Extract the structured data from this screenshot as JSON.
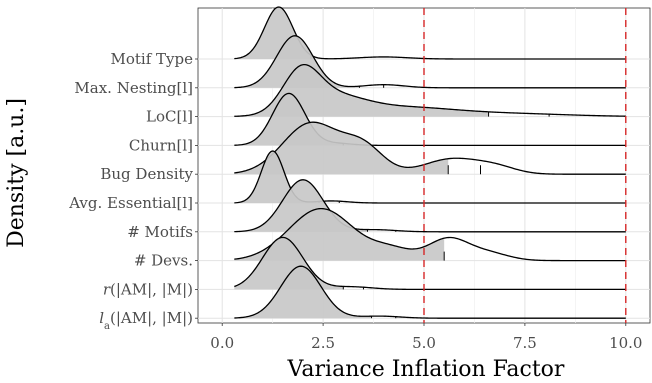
{
  "chart_data": {
    "type": "ridgeline",
    "xlabel": "Variance Inflation Factor",
    "ylabel": "Density [a.u.]",
    "xlim": [
      -0.6,
      10.6
    ],
    "x_ticks": [
      0,
      2.5,
      5,
      7.5,
      10
    ],
    "x_tick_labels": [
      "0.0",
      "2.5",
      "5.0",
      "7.5",
      "10.0"
    ],
    "grid": true,
    "reference_lines": [
      5,
      10
    ],
    "reference_line_color": "#d62728",
    "fill_color": "#c8c8c8",
    "categories": [
      "Motif Type",
      "Max. Nesting[l]",
      "LoC[l]",
      "Churn[l]",
      "Bug Density",
      "Avg. Essential[l]",
      "# Motifs",
      "# Devs.",
      "r(|AM|,|M|)",
      "l_a(|AM|,|M|)"
    ],
    "series": [
      {
        "label": "Motif Type",
        "label_parts": [
          {
            "t": "Motif Type"
          }
        ],
        "x_range": [
          0.3,
          10.0
        ],
        "fill_upper": 2.2,
        "quantile_marks": [
          2.2,
          2.6
        ],
        "components": [
          [
            1.4,
            0.35,
            1.0
          ],
          [
            4.0,
            0.6,
            0.04
          ]
        ]
      },
      {
        "label": "Max. Nesting[l]",
        "label_parts": [
          {
            "t": "Max. Nesting[l]"
          }
        ],
        "x_range": [
          0.3,
          10.0
        ],
        "fill_upper": 3.4,
        "quantile_marks": [
          3.4,
          4.0
        ],
        "components": [
          [
            1.8,
            0.45,
            1.0
          ],
          [
            4.0,
            0.5,
            0.06
          ]
        ]
      },
      {
        "label": "LoC[l]",
        "label_parts": [
          {
            "t": "LoC[l]"
          }
        ],
        "x_range": [
          0.3,
          10.0
        ],
        "fill_upper": 6.6,
        "quantile_marks": [
          6.6,
          8.1
        ],
        "components": [
          [
            1.95,
            0.45,
            1.0
          ],
          [
            2.7,
            0.8,
            0.5
          ],
          [
            4.5,
            1.2,
            0.22
          ],
          [
            7.0,
            1.5,
            0.08
          ]
        ]
      },
      {
        "label": "Churn[l]",
        "label_parts": [
          {
            "t": "Churn[l]"
          }
        ],
        "x_range": [
          0.3,
          10.0
        ],
        "fill_upper": 3.0,
        "quantile_marks": [
          3.0
        ],
        "components": [
          [
            1.65,
            0.4,
            1.0
          ],
          [
            2.8,
            0.4,
            0.04
          ]
        ]
      },
      {
        "label": "Bug Density",
        "label_parts": [
          {
            "t": "Bug Density"
          }
        ],
        "x_range": [
          0.3,
          10.0
        ],
        "fill_upper": 5.6,
        "quantile_marks": [
          5.6,
          6.4
        ],
        "components": [
          [
            2.2,
            0.7,
            1.0
          ],
          [
            3.5,
            0.5,
            0.5
          ],
          [
            5.7,
            0.7,
            0.3
          ],
          [
            6.8,
            0.5,
            0.12
          ]
        ]
      },
      {
        "label": "Avg. Essential[l]",
        "label_parts": [
          {
            "t": "Avg. Essential[l]"
          }
        ],
        "x_range": [
          0.3,
          10.0
        ],
        "fill_upper": 2.4,
        "quantile_marks": [
          2.4,
          2.9
        ],
        "components": [
          [
            1.25,
            0.28,
            1.0
          ],
          [
            2.7,
            0.4,
            0.04
          ]
        ]
      },
      {
        "label": "# Motifs",
        "label_parts": [
          {
            "t": "# Motifs"
          }
        ],
        "x_range": [
          0.3,
          10.0
        ],
        "fill_upper": 3.6,
        "quantile_marks": [
          3.6,
          4.3
        ],
        "components": [
          [
            2.0,
            0.5,
            1.0
          ],
          [
            3.8,
            0.5,
            0.04
          ]
        ]
      },
      {
        "label": "# Devs.",
        "label_parts": [
          {
            "t": "# Devs."
          }
        ],
        "x_range": [
          0.3,
          10.0
        ],
        "fill_upper": 5.5,
        "quantile_marks": [
          5.5
        ],
        "components": [
          [
            2.45,
            0.8,
            1.0
          ],
          [
            4.2,
            0.5,
            0.2
          ],
          [
            5.6,
            0.5,
            0.42
          ],
          [
            6.6,
            0.5,
            0.14
          ]
        ]
      },
      {
        "label": "r(|AM|,|M|)",
        "label_parts": [
          {
            "t": "r",
            "italic": true
          },
          {
            "t": "(|AM|, |M|)"
          }
        ],
        "x_range": [
          0.3,
          10.0
        ],
        "fill_upper": 3.0,
        "quantile_marks": [
          3.0,
          3.5
        ],
        "components": [
          [
            1.5,
            0.5,
            1.0
          ],
          [
            3.2,
            0.5,
            0.05
          ]
        ]
      },
      {
        "label": "l_a(|AM|,|M|)",
        "label_parts": [
          {
            "t": "l",
            "italic": true
          },
          {
            "t": "a",
            "sub": true
          },
          {
            "t": "(|AM|, |M|)"
          }
        ],
        "x_range": [
          0.3,
          10.0
        ],
        "fill_upper": 3.7,
        "quantile_marks": [
          3.7,
          4.3
        ],
        "components": [
          [
            1.95,
            0.5,
            1.0
          ],
          [
            3.9,
            0.5,
            0.04
          ]
        ]
      }
    ]
  }
}
